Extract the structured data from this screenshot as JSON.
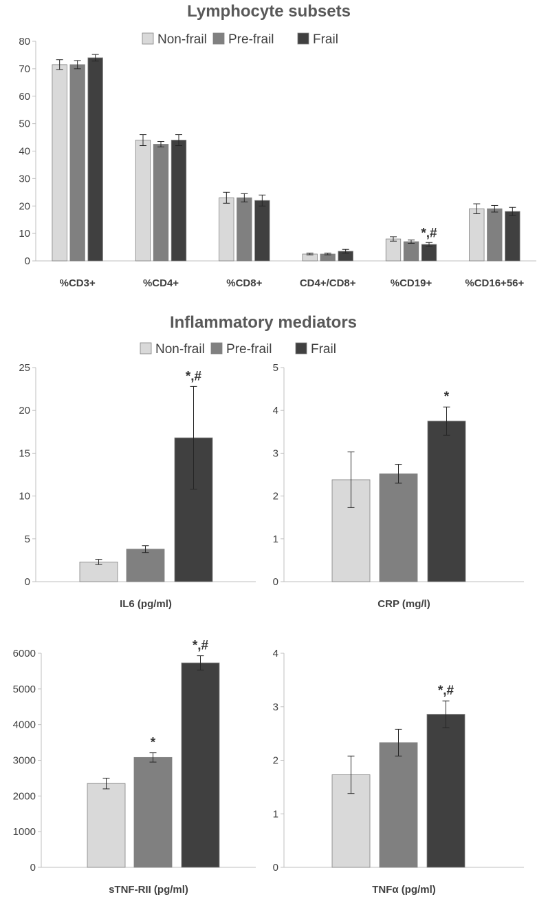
{
  "colors": {
    "Non-frail": "#d9d9d9",
    "Pre-frail": "#808080",
    "Frail": "#404040",
    "axis": "#bfbfbf",
    "bar_edge": "#7f7f7f"
  },
  "panel_titles": {
    "top": "Lymphocyte subsets",
    "bottom": "Inflammatory mediators"
  },
  "chart_data": [
    {
      "type": "bar",
      "title": "Lymphocyte subsets",
      "categories": [
        "%CD3+",
        "%CD4+",
        "%CD8+",
        "CD4+/CD8+",
        "%CD19+",
        "%CD16+56+"
      ],
      "series": [
        {
          "name": "Non-frail",
          "values": [
            71.5,
            44,
            23,
            2.5,
            8,
            19
          ],
          "errors": [
            1.8,
            2,
            2,
            0.3,
            0.8,
            1.8
          ]
        },
        {
          "name": "Pre-frail",
          "values": [
            71.5,
            42.5,
            23,
            2.5,
            7,
            19
          ],
          "errors": [
            1.5,
            1,
            1.5,
            0.3,
            0.6,
            1.2
          ]
        },
        {
          "name": "Frail",
          "values": [
            74,
            44,
            22,
            3.5,
            6,
            18
          ],
          "errors": [
            1.2,
            2,
            2,
            0.7,
            0.7,
            1.5
          ]
        }
      ],
      "ylim": [
        0,
        80
      ],
      "yticks": [
        "0",
        "10",
        "20",
        "30",
        "40",
        "50",
        "60",
        "70",
        "80"
      ],
      "annotations": [
        {
          "category": "%CD19+",
          "series": "Frail",
          "text": "*,#"
        }
      ],
      "legend": "top"
    },
    {
      "type": "bar",
      "title": "Inflammatory mediators",
      "xlabel": "IL6 (pg/ml)",
      "series": [
        {
          "name": "Non-frail",
          "value": 2.3,
          "error": 0.3
        },
        {
          "name": "Pre-frail",
          "value": 3.8,
          "error": 0.4
        },
        {
          "name": "Frail",
          "value": 16.8,
          "error": 6.0,
          "annotation": "*,#"
        }
      ],
      "ylim": [
        0,
        25
      ],
      "yticks": [
        "0",
        "5",
        "10",
        "15",
        "20",
        "25"
      ],
      "legend": "top"
    },
    {
      "type": "bar",
      "xlabel": "CRP (mg/l)",
      "series": [
        {
          "name": "Non-frail",
          "value": 2.38,
          "error": 0.65
        },
        {
          "name": "Pre-frail",
          "value": 2.52,
          "error": 0.22
        },
        {
          "name": "Frail",
          "value": 3.75,
          "error": 0.33,
          "annotation": "*"
        }
      ],
      "ylim": [
        0,
        5
      ],
      "yticks": [
        "0",
        "1",
        "2",
        "3",
        "4",
        "5"
      ]
    },
    {
      "type": "bar",
      "xlabel": "sTNF-RII (pg/ml)",
      "series": [
        {
          "name": "Non-frail",
          "value": 2350,
          "error": 150
        },
        {
          "name": "Pre-frail",
          "value": 3080,
          "error": 130,
          "annotation": "*"
        },
        {
          "name": "Frail",
          "value": 5730,
          "error": 200,
          "annotation": "*,#"
        }
      ],
      "ylim": [
        0,
        6000
      ],
      "yticks": [
        "0",
        "1000",
        "2000",
        "3000",
        "4000",
        "5000",
        "6000"
      ]
    },
    {
      "type": "bar",
      "xlabel": "TNFα (pg/ml)",
      "series": [
        {
          "name": "Non-frail",
          "value": 1.73,
          "error": 0.35
        },
        {
          "name": "Pre-frail",
          "value": 2.33,
          "error": 0.25
        },
        {
          "name": "Frail",
          "value": 2.86,
          "error": 0.25,
          "annotation": "*,#"
        }
      ],
      "ylim": [
        0,
        4
      ],
      "yticks": [
        "0",
        "1",
        "2",
        "3",
        "4"
      ]
    }
  ]
}
